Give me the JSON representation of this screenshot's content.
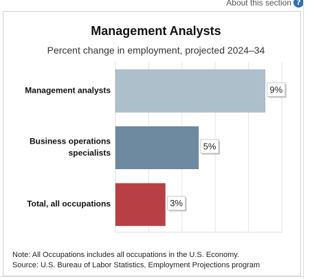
{
  "header": {
    "about_label": "About this section",
    "help_icon": "?"
  },
  "chart_data": {
    "type": "bar",
    "orientation": "horizontal",
    "title": "Management Analysts",
    "subtitle": "Percent change in employment, projected 2024–34",
    "categories": [
      [
        "Management analysts"
      ],
      [
        "Business operations",
        "specialists"
      ],
      [
        "Total, all occupations"
      ]
    ],
    "values": [
      9,
      5,
      3
    ],
    "value_labels": [
      "9%",
      "5%",
      "3%"
    ],
    "bar_colors": [
      "#aebfcc",
      "#6d8aa1",
      "#b84044"
    ],
    "xlim": [
      0,
      10
    ],
    "grid": true
  },
  "footnotes": {
    "note": "Note: All Occupations includes all occupations in the U.S. Economy.",
    "source": "Source: U.S. Bureau of Labor Statistics, Employment Projections program"
  }
}
